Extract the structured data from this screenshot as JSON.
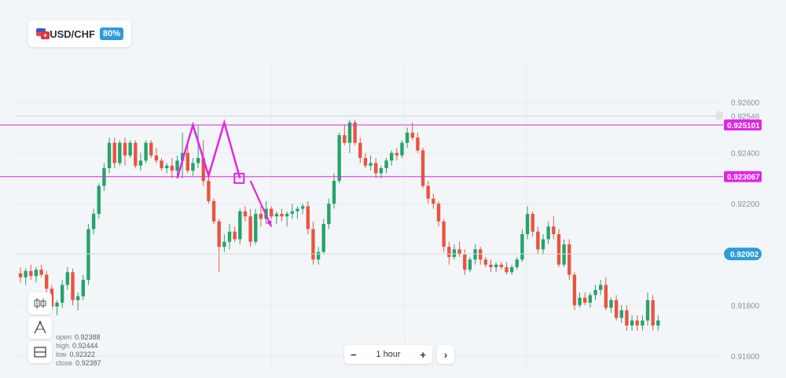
{
  "header": {
    "pair": "USD/CHF",
    "payout": "80%",
    "flag_icon": "usd-chf-flag-icon"
  },
  "toolbar": {
    "icons": [
      "candlestick-icon",
      "drawing-compass-icon",
      "layout-split-icon"
    ]
  },
  "ohlc": {
    "open_label": "open",
    "open": "0.92388",
    "high_label": "high",
    "high": "0.92444",
    "low_label": "low",
    "low": "0.92322",
    "close_label": "close",
    "close": "0.92387"
  },
  "timeframe": {
    "minus": "−",
    "label": "1 hour",
    "plus": "+",
    "next": "›"
  },
  "colors": {
    "up": "#26a36b",
    "down": "#e8553e",
    "level": "#e225e6",
    "current": "#2d9cdb",
    "annotation": "#e225e6"
  },
  "chart_data": {
    "type": "candlestick",
    "y_ticks": [
      "0.92600",
      "0.92400",
      "0.92200",
      "0.91800",
      "0.91600"
    ],
    "ylim": [
      0.916,
      0.926
    ],
    "price_labels": {
      "faint": "0.92546",
      "resistance": "0.925101",
      "support": "0.923067",
      "current": "0.92002"
    },
    "levels": {
      "faint": 0.92546,
      "resistance": 0.925101,
      "support": 0.923067,
      "current": 0.92002
    },
    "annotation": {
      "pattern": "double-top",
      "points": [
        [
          30,
          0.923
        ],
        [
          33,
          0.9251
        ],
        [
          36,
          0.9231
        ],
        [
          39,
          0.9252
        ],
        [
          42,
          0.923
        ]
      ],
      "breakout_box_index": 42,
      "arrow": [
        [
          44,
          0.9229
        ],
        [
          48,
          0.9211
        ]
      ]
    },
    "candles": [
      [
        0.91925,
        0.9195,
        0.9189,
        0.9191
      ],
      [
        0.9191,
        0.91945,
        0.9188,
        0.91935
      ],
      [
        0.91935,
        0.9196,
        0.919,
        0.91915
      ],
      [
        0.91915,
        0.9195,
        0.9189,
        0.9194
      ],
      [
        0.9194,
        0.9196,
        0.9191,
        0.9192
      ],
      [
        0.9192,
        0.91935,
        0.9185,
        0.91865
      ],
      [
        0.91865,
        0.9188,
        0.9178,
        0.91795
      ],
      [
        0.91795,
        0.9182,
        0.9176,
        0.9181
      ],
      [
        0.9181,
        0.919,
        0.9179,
        0.9188
      ],
      [
        0.9188,
        0.9195,
        0.9186,
        0.9193
      ],
      [
        0.9193,
        0.91945,
        0.918,
        0.9182
      ],
      [
        0.9182,
        0.9185,
        0.9178,
        0.91835
      ],
      [
        0.91835,
        0.9192,
        0.9182,
        0.919
      ],
      [
        0.919,
        0.9212,
        0.9188,
        0.921
      ],
      [
        0.921,
        0.9218,
        0.9208,
        0.9216
      ],
      [
        0.9216,
        0.9228,
        0.9214,
        0.9227
      ],
      [
        0.9227,
        0.9236,
        0.9225,
        0.9234
      ],
      [
        0.9234,
        0.9246,
        0.9232,
        0.9244
      ],
      [
        0.9244,
        0.9246,
        0.9234,
        0.9236
      ],
      [
        0.9236,
        0.9245,
        0.9235,
        0.9244
      ],
      [
        0.9244,
        0.9246,
        0.9235,
        0.9239
      ],
      [
        0.9239,
        0.9245,
        0.9238,
        0.9244
      ],
      [
        0.9244,
        0.9245,
        0.9234,
        0.9235
      ],
      [
        0.9235,
        0.924,
        0.9233,
        0.9237
      ],
      [
        0.9237,
        0.9245,
        0.9236,
        0.9244
      ],
      [
        0.9244,
        0.9245,
        0.9238,
        0.9239
      ],
      [
        0.9239,
        0.9242,
        0.9236,
        0.9237
      ],
      [
        0.9237,
        0.9238,
        0.9233,
        0.9234
      ],
      [
        0.9234,
        0.9236,
        0.9232,
        0.9235
      ],
      [
        0.9235,
        0.9238,
        0.923,
        0.9233
      ],
      [
        0.9233,
        0.9239,
        0.9231,
        0.9237
      ],
      [
        0.9237,
        0.9248,
        0.923,
        0.924
      ],
      [
        0.924,
        0.9244,
        0.9232,
        0.9233
      ],
      [
        0.9233,
        0.9238,
        0.9231,
        0.9236
      ],
      [
        0.9236,
        0.9251,
        0.9234,
        0.9238
      ],
      [
        0.9238,
        0.9245,
        0.9227,
        0.9229
      ],
      [
        0.9229,
        0.9233,
        0.922,
        0.9221
      ],
      [
        0.9221,
        0.9222,
        0.9212,
        0.9213
      ],
      [
        0.9213,
        0.9214,
        0.9193,
        0.9203
      ],
      [
        0.9203,
        0.9208,
        0.9201,
        0.9205
      ],
      [
        0.9205,
        0.9212,
        0.9202,
        0.9209
      ],
      [
        0.9209,
        0.9211,
        0.9205,
        0.9206
      ],
      [
        0.9206,
        0.9218,
        0.9204,
        0.9217
      ],
      [
        0.9217,
        0.9219,
        0.9213,
        0.9215
      ],
      [
        0.9215,
        0.9218,
        0.9203,
        0.9205
      ],
      [
        0.9205,
        0.9218,
        0.9204,
        0.9216
      ],
      [
        0.9216,
        0.9219,
        0.9211,
        0.9214
      ],
      [
        0.9214,
        0.9221,
        0.9212,
        0.9218
      ],
      [
        0.9218,
        0.9219,
        0.9214,
        0.9215
      ],
      [
        0.9215,
        0.9217,
        0.9212,
        0.9216
      ],
      [
        0.9216,
        0.9218,
        0.9213,
        0.9215
      ],
      [
        0.9215,
        0.9217,
        0.9211,
        0.9216
      ],
      [
        0.9216,
        0.922,
        0.9214,
        0.9217
      ],
      [
        0.9217,
        0.9219,
        0.9214,
        0.9218
      ],
      [
        0.9218,
        0.922,
        0.9216,
        0.9219
      ],
      [
        0.9219,
        0.9221,
        0.9208,
        0.921
      ],
      [
        0.921,
        0.9213,
        0.9196,
        0.9198
      ],
      [
        0.9198,
        0.9203,
        0.9196,
        0.9201
      ],
      [
        0.9201,
        0.9214,
        0.92,
        0.9212
      ],
      [
        0.9212,
        0.9222,
        0.921,
        0.922
      ],
      [
        0.922,
        0.9232,
        0.9218,
        0.9229
      ],
      [
        0.9229,
        0.9248,
        0.9228,
        0.9247
      ],
      [
        0.9247,
        0.9251,
        0.9243,
        0.9244
      ],
      [
        0.9244,
        0.9253,
        0.924,
        0.9252
      ],
      [
        0.9252,
        0.9253,
        0.9243,
        0.9244
      ],
      [
        0.9244,
        0.9246,
        0.9236,
        0.9238
      ],
      [
        0.9238,
        0.924,
        0.9234,
        0.9235
      ],
      [
        0.9235,
        0.9239,
        0.9233,
        0.9236
      ],
      [
        0.9236,
        0.9238,
        0.923,
        0.9232
      ],
      [
        0.9232,
        0.9235,
        0.923,
        0.9234
      ],
      [
        0.9234,
        0.9238,
        0.9232,
        0.9237
      ],
      [
        0.9237,
        0.9241,
        0.9235,
        0.924
      ],
      [
        0.924,
        0.9242,
        0.9237,
        0.9239
      ],
      [
        0.9239,
        0.9245,
        0.9238,
        0.9244
      ],
      [
        0.9244,
        0.925,
        0.9242,
        0.9248
      ],
      [
        0.9248,
        0.9252,
        0.9245,
        0.9246
      ],
      [
        0.9246,
        0.9248,
        0.924,
        0.9241
      ],
      [
        0.9241,
        0.9242,
        0.9226,
        0.9227
      ],
      [
        0.9227,
        0.9229,
        0.922,
        0.9222
      ],
      [
        0.9222,
        0.9224,
        0.9218,
        0.922
      ],
      [
        0.922,
        0.9221,
        0.9211,
        0.9213
      ],
      [
        0.9213,
        0.9214,
        0.9201,
        0.9203
      ],
      [
        0.9203,
        0.9205,
        0.9196,
        0.9199
      ],
      [
        0.9199,
        0.9204,
        0.9198,
        0.9202
      ],
      [
        0.9202,
        0.9205,
        0.9199,
        0.92
      ],
      [
        0.92,
        0.9202,
        0.9192,
        0.9194
      ],
      [
        0.9194,
        0.9199,
        0.9193,
        0.9198
      ],
      [
        0.9198,
        0.9204,
        0.9196,
        0.9202
      ],
      [
        0.9202,
        0.9203,
        0.9196,
        0.9198
      ],
      [
        0.9198,
        0.9199,
        0.9195,
        0.9196
      ],
      [
        0.9196,
        0.9198,
        0.9193,
        0.9195
      ],
      [
        0.9195,
        0.9197,
        0.9193,
        0.9196
      ],
      [
        0.9196,
        0.9197,
        0.9194,
        0.9195
      ],
      [
        0.9195,
        0.9197,
        0.9192,
        0.9193
      ],
      [
        0.9193,
        0.9196,
        0.9192,
        0.9195
      ],
      [
        0.9195,
        0.9199,
        0.9194,
        0.9198
      ],
      [
        0.9198,
        0.921,
        0.9197,
        0.9208
      ],
      [
        0.9208,
        0.9219,
        0.9206,
        0.9216
      ],
      [
        0.9216,
        0.9217,
        0.9207,
        0.9209
      ],
      [
        0.9209,
        0.9211,
        0.92,
        0.9202
      ],
      [
        0.9202,
        0.9208,
        0.92,
        0.9206
      ],
      [
        0.9206,
        0.9213,
        0.9204,
        0.9211
      ],
      [
        0.9211,
        0.9215,
        0.9206,
        0.9208
      ],
      [
        0.9208,
        0.921,
        0.9195,
        0.9196
      ],
      [
        0.9196,
        0.9206,
        0.9195,
        0.9204
      ],
      [
        0.9204,
        0.9206,
        0.919,
        0.9192
      ],
      [
        0.9192,
        0.9193,
        0.9178,
        0.918
      ],
      [
        0.918,
        0.9185,
        0.9179,
        0.9183
      ],
      [
        0.9183,
        0.9185,
        0.918,
        0.9181
      ],
      [
        0.9181,
        0.9185,
        0.9179,
        0.9184
      ],
      [
        0.9184,
        0.9188,
        0.9182,
        0.9186
      ],
      [
        0.9186,
        0.919,
        0.9184,
        0.9188
      ],
      [
        0.9188,
        0.9191,
        0.9178,
        0.9179
      ],
      [
        0.9179,
        0.9183,
        0.9177,
        0.9182
      ],
      [
        0.9182,
        0.9184,
        0.9174,
        0.9175
      ],
      [
        0.9175,
        0.918,
        0.9173,
        0.9178
      ],
      [
        0.9178,
        0.918,
        0.917,
        0.9172
      ],
      [
        0.9172,
        0.9176,
        0.917,
        0.9174
      ],
      [
        0.9174,
        0.9176,
        0.917,
        0.9172
      ],
      [
        0.9172,
        0.9176,
        0.917,
        0.9174
      ],
      [
        0.9174,
        0.9185,
        0.9172,
        0.9182
      ],
      [
        0.9182,
        0.9184,
        0.917,
        0.9172
      ],
      [
        0.9172,
        0.9176,
        0.917,
        0.9174
      ]
    ]
  }
}
